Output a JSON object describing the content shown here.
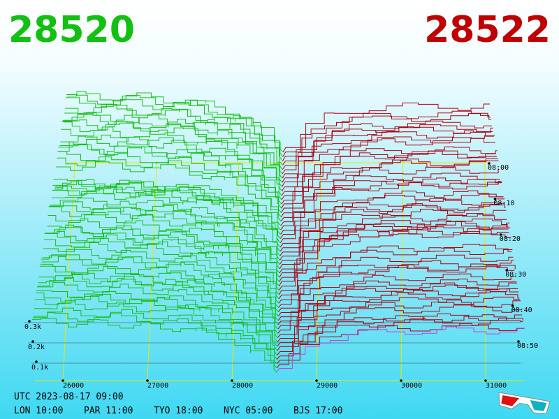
{
  "header": {
    "bid": "28520",
    "ask": "28522"
  },
  "price_axis": {
    "labels": [
      "26000",
      "27000",
      "28000",
      "29000",
      "30000",
      "31000"
    ]
  },
  "time_axis": {
    "labels": [
      "08:00",
      "08:10",
      "08:20",
      "08:30",
      "08:40",
      "08:50"
    ]
  },
  "volume_axis": {
    "labels": [
      "0.3k",
      "0.2k",
      "0.1k"
    ]
  },
  "footer": {
    "utc": "UTC 2023-08-17 09:00",
    "clocks": [
      "LON 10:00",
      "PAR 11:00",
      "TYO 18:00",
      "NYC 05:00",
      "BJS 17:00"
    ]
  }
}
